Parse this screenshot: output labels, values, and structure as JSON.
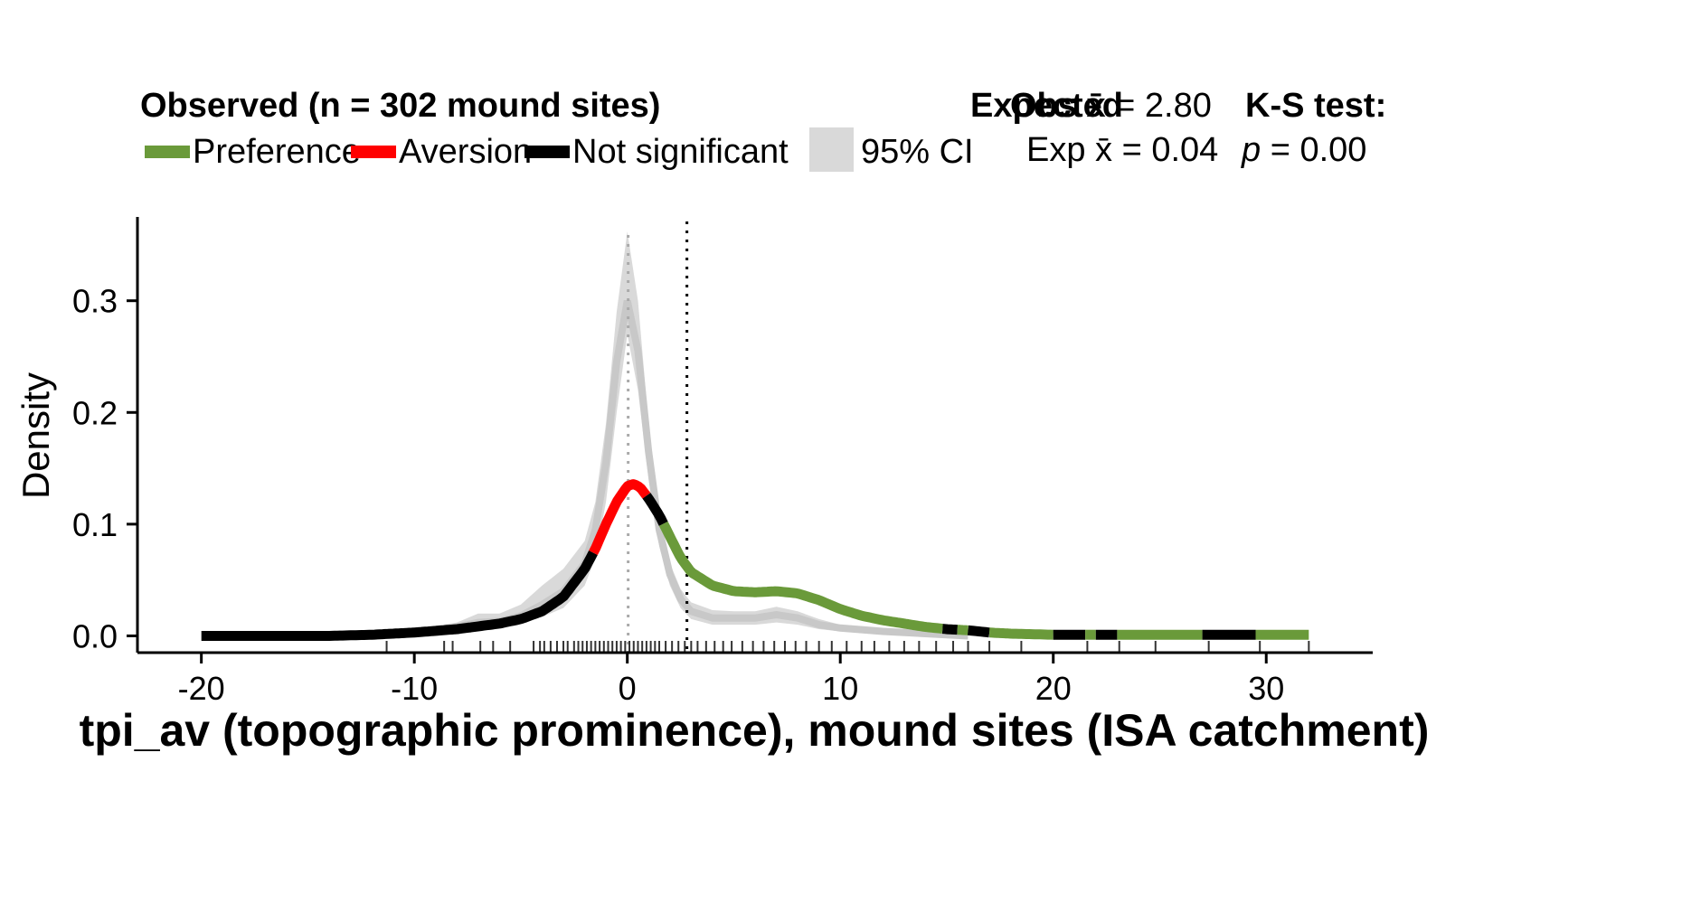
{
  "legend": {
    "observed_title": "Observed (n = 302 mound sites)",
    "preference": "Preference",
    "aversion": "Aversion",
    "not_significant": "Not significant",
    "expected_title": "Expected",
    "ci_label": "95% CI",
    "obs_mean_label": "Obs x̄",
    "obs_mean_value": "= 2.80",
    "exp_mean_label": "Exp x̄",
    "exp_mean_value": "= 0.04",
    "ks_title": "K-S test:",
    "ks_p_label": "p",
    "ks_p_value": "= 0.00"
  },
  "colors": {
    "preference": "#6a9a3a",
    "aversion": "#ff0000",
    "not_significant": "#000000",
    "ci_fill": "#d9d9d9",
    "expected_line": "#c8c8c8"
  },
  "chart_data": {
    "type": "line",
    "xlabel": "tpi_av (topographic prominence), mound sites (ISA catchment)",
    "ylabel": "Density",
    "xlim": [
      -23,
      35
    ],
    "ylim": [
      -0.015,
      0.375
    ],
    "xticks": [
      -20,
      -10,
      0,
      10,
      20,
      30
    ],
    "yticks": [
      0.0,
      0.1,
      0.2,
      0.3
    ],
    "ytick_labels": [
      "0.0",
      "0.1",
      "0.2",
      "0.3"
    ],
    "obs_mean": 2.8,
    "exp_mean": 0.04,
    "observed_density": {
      "x": [
        -20,
        -17,
        -14,
        -12,
        -10,
        -8,
        -6,
        -5,
        -4,
        -3,
        -2,
        -1.5,
        -1,
        -0.5,
        0,
        0.3,
        0.6,
        1,
        1.5,
        2,
        2.5,
        3,
        4,
        5,
        6,
        7,
        8,
        9,
        10,
        11,
        12,
        13,
        14,
        15,
        16,
        17,
        18,
        20,
        22,
        25,
        28,
        32
      ],
      "y": [
        0.0,
        0.0,
        0.0,
        0.001,
        0.003,
        0.006,
        0.011,
        0.015,
        0.022,
        0.035,
        0.06,
        0.078,
        0.1,
        0.12,
        0.134,
        0.136,
        0.133,
        0.123,
        0.108,
        0.089,
        0.07,
        0.057,
        0.045,
        0.04,
        0.039,
        0.04,
        0.038,
        0.032,
        0.024,
        0.018,
        0.014,
        0.011,
        0.008,
        0.006,
        0.005,
        0.003,
        0.002,
        0.001,
        0.001,
        0.001,
        0.001,
        0.001
      ],
      "segments": [
        {
          "status": "not_significant",
          "from": -20,
          "to": -1.6
        },
        {
          "status": "aversion",
          "from": -1.6,
          "to": 0.9
        },
        {
          "status": "not_significant",
          "from": 0.9,
          "to": 1.7
        },
        {
          "status": "preference",
          "from": 1.7,
          "to": 14.8
        },
        {
          "status": "not_significant",
          "from": 14.8,
          "to": 15.5
        },
        {
          "status": "preference",
          "from": 15.5,
          "to": 16.0
        },
        {
          "status": "not_significant",
          "from": 16.0,
          "to": 17.0
        },
        {
          "status": "preference",
          "from": 17.0,
          "to": 20.0
        },
        {
          "status": "not_significant",
          "from": 20.0,
          "to": 21.5
        },
        {
          "status": "preference",
          "from": 21.5,
          "to": 22.0
        },
        {
          "status": "not_significant",
          "from": 22.0,
          "to": 23.0
        },
        {
          "status": "preference",
          "from": 23.0,
          "to": 27.0
        },
        {
          "status": "not_significant",
          "from": 27.0,
          "to": 29.5
        },
        {
          "status": "preference",
          "from": 29.5,
          "to": 32.0
        }
      ]
    },
    "expected_ci": {
      "x": [
        -14,
        -10,
        -8,
        -7,
        -6,
        -5,
        -4,
        -3,
        -2,
        -1.5,
        -1,
        -0.5,
        0,
        0.5,
        1,
        1.5,
        2,
        2.5,
        3,
        4,
        5,
        6,
        7,
        8,
        9,
        10,
        12,
        14,
        16
      ],
      "lower": [
        0.0,
        0.001,
        0.004,
        0.006,
        0.007,
        0.011,
        0.017,
        0.025,
        0.045,
        0.07,
        0.12,
        0.2,
        0.27,
        0.22,
        0.14,
        0.08,
        0.045,
        0.025,
        0.015,
        0.01,
        0.01,
        0.01,
        0.012,
        0.01,
        0.006,
        0.004,
        0.002,
        0.001,
        0.0
      ],
      "upper": [
        0.003,
        0.006,
        0.012,
        0.02,
        0.02,
        0.028,
        0.045,
        0.06,
        0.085,
        0.12,
        0.19,
        0.29,
        0.362,
        0.3,
        0.19,
        0.11,
        0.065,
        0.042,
        0.03,
        0.023,
        0.022,
        0.022,
        0.026,
        0.022,
        0.015,
        0.01,
        0.006,
        0.003,
        0.001
      ],
      "mean": [
        0.001,
        0.003,
        0.008,
        0.012,
        0.013,
        0.018,
        0.028,
        0.04,
        0.065,
        0.095,
        0.155,
        0.245,
        0.3,
        0.255,
        0.165,
        0.095,
        0.055,
        0.033,
        0.022,
        0.016,
        0.016,
        0.016,
        0.019,
        0.016,
        0.01,
        0.007,
        0.004,
        0.002,
        0.0
      ]
    },
    "rug_x": [
      -11.3,
      -8.6,
      -8.2,
      -6.9,
      -6.3,
      -5.5,
      -4.4,
      -4.1,
      -3.9,
      -3.6,
      -3.3,
      -3.0,
      -2.8,
      -2.5,
      -2.3,
      -2.1,
      -1.9,
      -1.7,
      -1.5,
      -1.3,
      -1.1,
      -0.9,
      -0.7,
      -0.5,
      -0.3,
      -0.1,
      0.1,
      0.3,
      0.5,
      0.7,
      0.9,
      1.1,
      1.3,
      1.5,
      1.8,
      2.1,
      2.4,
      2.7,
      3.0,
      3.3,
      3.7,
      4.1,
      4.5,
      4.9,
      5.4,
      5.9,
      6.4,
      6.9,
      7.4,
      7.9,
      8.4,
      9.0,
      9.6,
      10.3,
      11.0,
      11.6,
      12.3,
      13.0,
      13.7,
      14.5,
      15.3,
      16.0,
      17.0,
      18.5,
      21.6,
      23.1,
      24.8,
      27.3,
      29.7,
      32.0
    ]
  }
}
